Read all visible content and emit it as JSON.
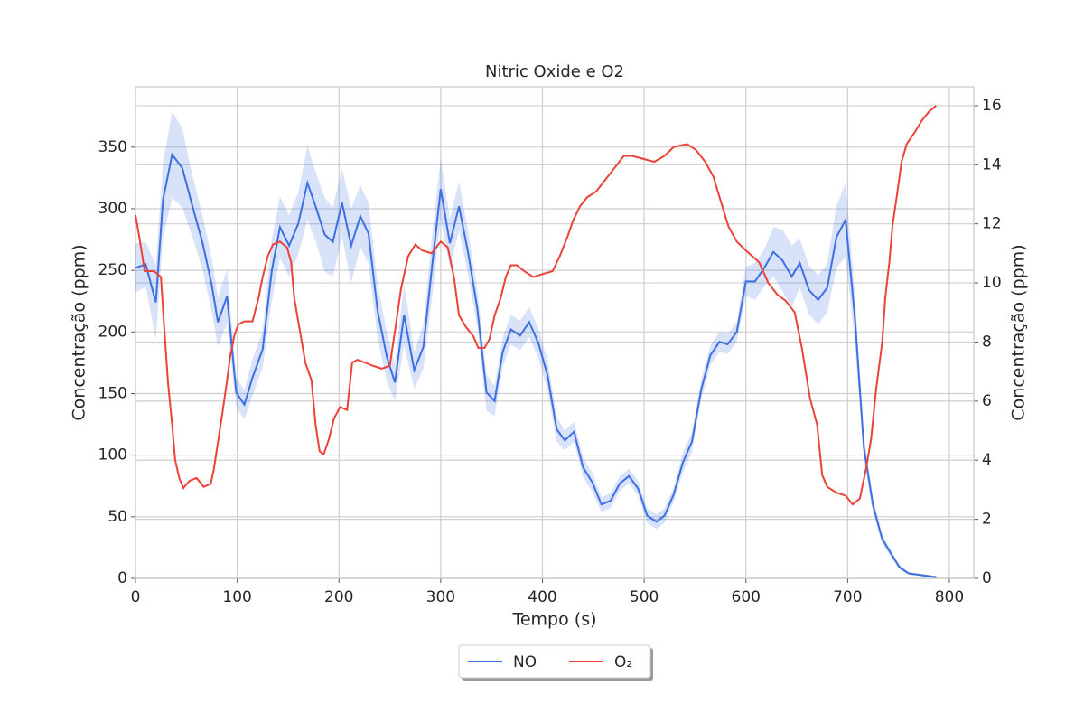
{
  "chart_data": {
    "type": "line",
    "title": "Nitric Oxide e O2",
    "xlabel": "Tempo (s)",
    "ylabel": "Concentração (ppm)",
    "y2label": "Concentração (ppm)",
    "xlim": [
      0,
      824
    ],
    "xticks": [
      0,
      100,
      200,
      300,
      400,
      500,
      600,
      700,
      800
    ],
    "ylim": [
      0,
      399
    ],
    "yticks": [
      0,
      50,
      100,
      150,
      200,
      250,
      300,
      350
    ],
    "y2lim": [
      0,
      16.64
    ],
    "y2ticks": [
      0,
      2,
      4,
      6,
      8,
      10,
      12,
      14,
      16
    ],
    "grid": true,
    "legend": "lower center",
    "series": [
      {
        "name": "NO",
        "color": "#3d6fe3",
        "x": [
          0,
          10,
          20,
          27,
          36,
          46,
          56,
          66,
          75,
          81,
          90,
          99,
          107,
          115,
          125,
          134,
          142,
          151,
          160,
          169,
          177,
          186,
          194,
          203,
          212,
          221,
          229,
          238,
          247,
          255,
          264,
          274,
          283,
          292,
          300,
          309,
          318,
          327,
          336,
          345,
          353,
          361,
          369,
          378,
          387,
          396,
          405,
          414,
          422,
          431,
          440,
          449,
          458,
          467,
          476,
          485,
          494,
          503,
          512,
          520,
          529,
          538,
          547,
          556,
          565,
          574,
          582,
          591,
          600,
          609,
          618,
          627,
          636,
          645,
          653,
          662,
          671,
          680,
          689,
          698,
          707,
          716,
          725,
          734,
          742,
          751,
          760,
          787
        ],
        "values": [
          252,
          255,
          224,
          307,
          344,
          333,
          302,
          272,
          238,
          208,
          229,
          151,
          141,
          163,
          186,
          250,
          285,
          270,
          288,
          321,
          302,
          279,
          273,
          305,
          270,
          294,
          280,
          217,
          180,
          159,
          214,
          169,
          188,
          257,
          316,
          272,
          302,
          264,
          219,
          151,
          144,
          184,
          202,
          197,
          208,
          191,
          165,
          121,
          112,
          119,
          90,
          78,
          60,
          63,
          77,
          83,
          73,
          51,
          46,
          51,
          68,
          94,
          111,
          153,
          181,
          192,
          190,
          200,
          241,
          241,
          252,
          265,
          258,
          245,
          256,
          234,
          226,
          236,
          277,
          291,
          213,
          106,
          59,
          32,
          21,
          9,
          4,
          1
        ],
        "ci": [
          20,
          18,
          30,
          30,
          35,
          32,
          25,
          22,
          22,
          20,
          22,
          12,
          12,
          15,
          15,
          25,
          25,
          25,
          25,
          30,
          28,
          30,
          28,
          28,
          30,
          25,
          25,
          22,
          20,
          15,
          25,
          15,
          18,
          25,
          25,
          20,
          20,
          18,
          15,
          15,
          12,
          12,
          12,
          12,
          12,
          12,
          12,
          10,
          8,
          8,
          8,
          8,
          6,
          6,
          6,
          6,
          6,
          6,
          6,
          6,
          6,
          8,
          8,
          8,
          8,
          8,
          8,
          8,
          12,
          15,
          15,
          20,
          25,
          25,
          20,
          20,
          20,
          20,
          25,
          30,
          20,
          10,
          6,
          4,
          3,
          2,
          1,
          1
        ]
      },
      {
        "name": "O₂",
        "color": "#ec4238",
        "axis": "y2",
        "x": [
          0,
          4,
          9,
          18,
          25,
          28,
          32,
          36,
          39,
          43,
          47,
          53,
          60,
          67,
          74,
          77,
          81,
          85,
          90,
          93,
          97,
          101,
          107,
          115,
          121,
          125,
          130,
          135,
          142,
          149,
          153,
          156,
          162,
          167,
          173,
          177,
          181,
          185,
          190,
          195,
          201,
          208,
          213,
          218,
          226,
          233,
          242,
          250,
          256,
          261,
          268,
          275,
          282,
          291,
          300,
          307,
          313,
          318,
          325,
          332,
          337,
          343,
          348,
          353,
          359,
          364,
          369,
          375,
          382,
          391,
          400,
          410,
          417,
          425,
          430,
          437,
          444,
          453,
          462,
          471,
          480,
          488,
          499,
          510,
          520,
          529,
          542,
          551,
          560,
          568,
          575,
          583,
          591,
          600,
          613,
          622,
          631,
          639,
          648,
          655,
          663,
          670,
          675,
          680,
          689,
          698,
          705,
          712,
          718,
          723,
          728,
          734,
          737,
          741,
          744,
          749,
          753,
          758,
          766,
          773,
          780,
          787
        ],
        "values": [
          12.3,
          11.5,
          10.4,
          10.4,
          10.2,
          8.6,
          6.6,
          5.2,
          4.0,
          3.4,
          3.06,
          3.3,
          3.4,
          3.1,
          3.2,
          3.7,
          4.6,
          5.5,
          6.7,
          7.5,
          8.2,
          8.6,
          8.7,
          8.7,
          9.5,
          10.2,
          10.9,
          11.3,
          11.4,
          11.2,
          10.7,
          9.5,
          8.3,
          7.3,
          6.7,
          5.2,
          4.3,
          4.2,
          4.7,
          5.4,
          5.8,
          5.7,
          7.3,
          7.4,
          7.3,
          7.2,
          7.1,
          7.2,
          8.6,
          9.8,
          10.9,
          11.3,
          11.1,
          11.0,
          11.4,
          11.2,
          10.2,
          8.9,
          8.5,
          8.2,
          7.8,
          7.8,
          8.1,
          8.9,
          9.5,
          10.2,
          10.6,
          10.6,
          10.4,
          10.2,
          10.3,
          10.4,
          10.9,
          11.6,
          12.1,
          12.6,
          12.9,
          13.1,
          13.5,
          13.9,
          14.3,
          14.3,
          14.2,
          14.1,
          14.3,
          14.6,
          14.7,
          14.5,
          14.1,
          13.6,
          12.8,
          11.9,
          11.4,
          11.1,
          10.7,
          10.0,
          9.6,
          9.4,
          9.0,
          7.8,
          6.1,
          5.2,
          3.5,
          3.1,
          2.9,
          2.8,
          2.5,
          2.7,
          3.7,
          4.7,
          6.4,
          8.0,
          9.5,
          10.7,
          11.9,
          13.1,
          14.1,
          14.7,
          15.1,
          15.5,
          15.8,
          16.0
        ]
      }
    ]
  }
}
